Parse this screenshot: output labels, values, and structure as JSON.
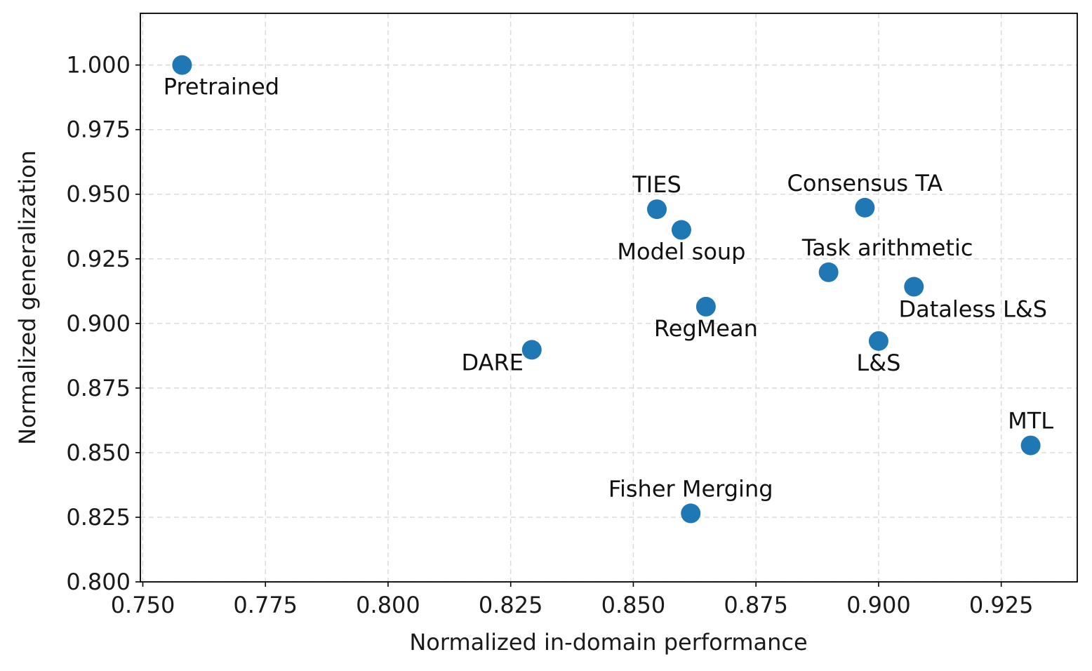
{
  "chart_data": {
    "type": "scatter",
    "title": "",
    "xlabel": "Normalized in-domain performance",
    "ylabel": "Normalized generalization",
    "xlim": [
      0.7495,
      0.9405
    ],
    "ylim": [
      0.8,
      1.02
    ],
    "grid": true,
    "marker_color": "#1f77b4",
    "xticks": [
      0.75,
      0.775,
      0.8,
      0.825,
      0.85,
      0.875,
      0.9,
      0.925
    ],
    "xtick_labels": [
      "0.750",
      "0.775",
      "0.800",
      "0.825",
      "0.850",
      "0.875",
      "0.900",
      "0.925"
    ],
    "yticks": [
      0.8,
      0.825,
      0.85,
      0.875,
      0.9,
      0.925,
      0.95,
      0.975,
      1.0
    ],
    "ytick_labels": [
      "0.800",
      "0.825",
      "0.850",
      "0.875",
      "0.900",
      "0.925",
      "0.950",
      "0.975",
      "1.000"
    ],
    "points": [
      {
        "label": "Pretrained",
        "x": 0.758,
        "y": 1.0,
        "label_pos": "below-right"
      },
      {
        "label": "TIES",
        "x": 0.8548,
        "y": 0.9442,
        "label_pos": "above"
      },
      {
        "label": "Model soup",
        "x": 0.8598,
        "y": 0.9362,
        "label_pos": "below"
      },
      {
        "label": "RegMean",
        "x": 0.8648,
        "y": 0.9065,
        "label_pos": "below"
      },
      {
        "label": "DARE",
        "x": 0.8293,
        "y": 0.8898,
        "label_pos": "below-left"
      },
      {
        "label": "Fisher Merging",
        "x": 0.8617,
        "y": 0.8265,
        "label_pos": "above"
      },
      {
        "label": "Consensus TA",
        "x": 0.8972,
        "y": 0.9448,
        "label_pos": "above"
      },
      {
        "label": "Task arithmetic",
        "x": 0.8898,
        "y": 0.9198,
        "label_pos": "above-right"
      },
      {
        "label": "Dataless L&S",
        "x": 0.9072,
        "y": 0.9142,
        "label_pos": "below-right"
      },
      {
        "label": "L&S",
        "x": 0.9,
        "y": 0.8932,
        "label_pos": "below"
      },
      {
        "label": "MTL",
        "x": 0.931,
        "y": 0.8528,
        "label_pos": "above"
      }
    ]
  }
}
